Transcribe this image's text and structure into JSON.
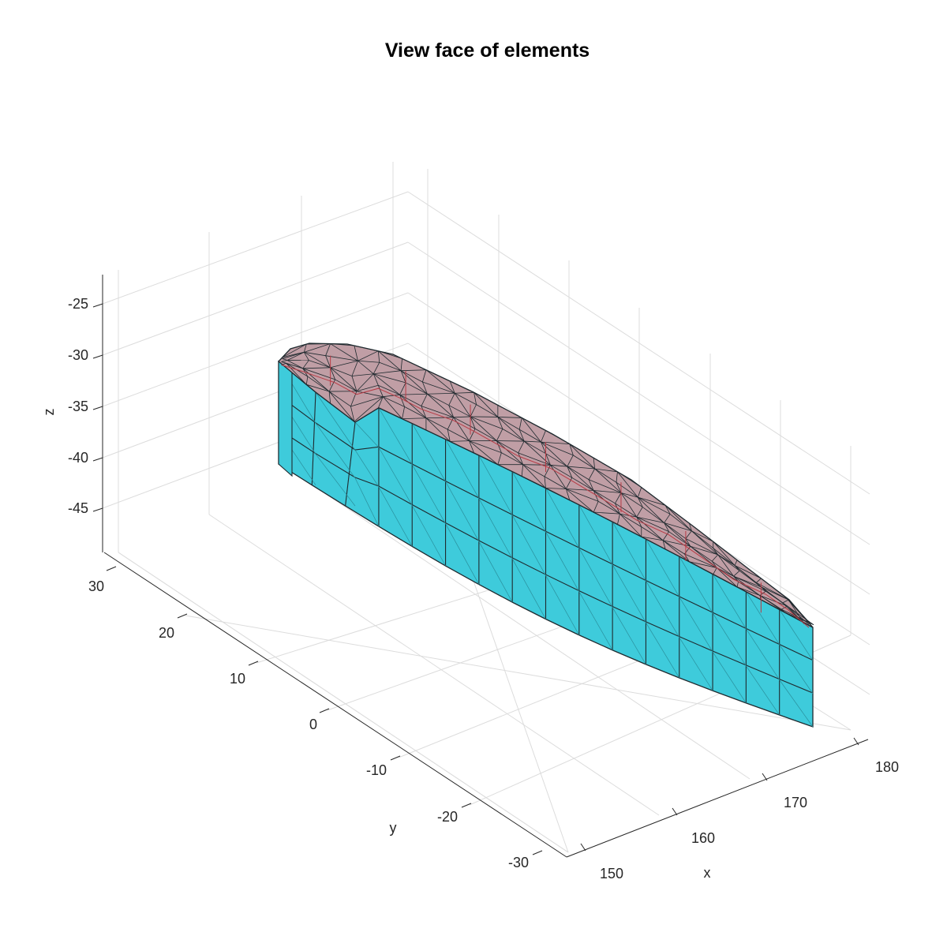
{
  "figure": {
    "title": "View face of elements"
  },
  "axes": {
    "x": {
      "label": "x",
      "ticks": [
        "150",
        "160",
        "170",
        "180"
      ]
    },
    "y": {
      "label": "y",
      "ticks": [
        "30",
        "20",
        "10",
        "0",
        "-10",
        "-20",
        "-30"
      ]
    },
    "z": {
      "label": "z",
      "ticks": [
        "-25",
        "-30",
        "-35",
        "-40",
        "-45"
      ]
    },
    "grid": true
  },
  "mesh": {
    "side_color": "#3ecbdb",
    "top_color": "#c09ea5",
    "edge_color": "#1f2a2f",
    "inner_edge_color": "#b83a44"
  }
}
